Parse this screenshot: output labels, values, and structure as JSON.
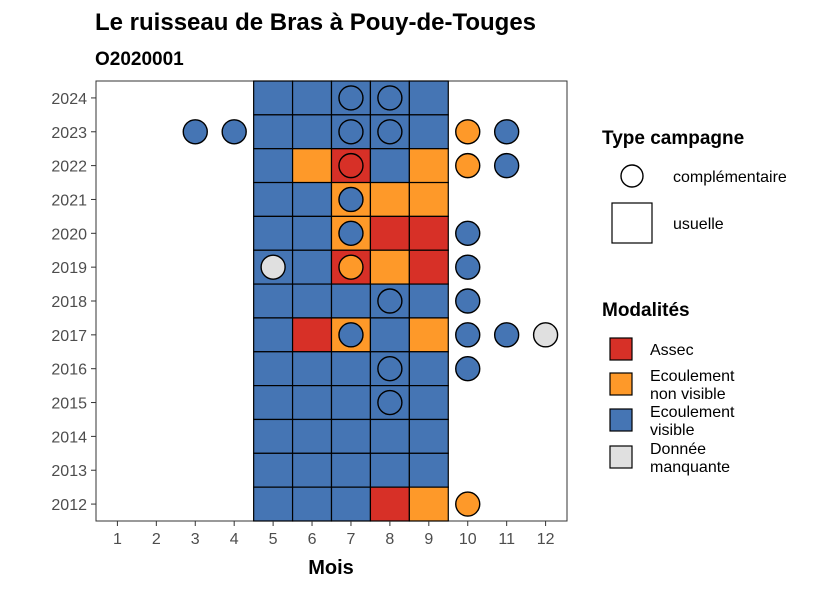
{
  "chart_data": {
    "type": "heatmap",
    "title": "Le ruisseau de Bras à Pouy-de-Touges",
    "subtitle": "O2020001",
    "xlabel": "Mois",
    "ylabel": "",
    "x_ticks": [
      "1",
      "2",
      "3",
      "4",
      "5",
      "6",
      "7",
      "8",
      "9",
      "10",
      "11",
      "12"
    ],
    "y_ticks": [
      "2012",
      "2013",
      "2014",
      "2015",
      "2016",
      "2017",
      "2018",
      "2019",
      "2020",
      "2021",
      "2022",
      "2023",
      "2024"
    ],
    "grid": false,
    "colors": {
      "Assec": "#d73027",
      "Ecoulement non visible": "#fe9929",
      "Ecoulement visible": "#4575b4",
      "Donnée manquante": "#e0e0e0"
    },
    "usuelle": [
      {
        "year": 2024,
        "month": 5,
        "modalite": "Ecoulement visible"
      },
      {
        "year": 2024,
        "month": 6,
        "modalite": "Ecoulement visible"
      },
      {
        "year": 2024,
        "month": 7,
        "modalite": "Ecoulement visible"
      },
      {
        "year": 2024,
        "month": 8,
        "modalite": "Ecoulement visible"
      },
      {
        "year": 2024,
        "month": 9,
        "modalite": "Ecoulement visible"
      },
      {
        "year": 2023,
        "month": 5,
        "modalite": "Ecoulement visible"
      },
      {
        "year": 2023,
        "month": 6,
        "modalite": "Ecoulement visible"
      },
      {
        "year": 2023,
        "month": 7,
        "modalite": "Ecoulement visible"
      },
      {
        "year": 2023,
        "month": 8,
        "modalite": "Ecoulement visible"
      },
      {
        "year": 2023,
        "month": 9,
        "modalite": "Ecoulement visible"
      },
      {
        "year": 2022,
        "month": 5,
        "modalite": "Ecoulement visible"
      },
      {
        "year": 2022,
        "month": 6,
        "modalite": "Ecoulement non visible"
      },
      {
        "year": 2022,
        "month": 7,
        "modalite": "Assec"
      },
      {
        "year": 2022,
        "month": 8,
        "modalite": "Ecoulement visible"
      },
      {
        "year": 2022,
        "month": 9,
        "modalite": "Ecoulement non visible"
      },
      {
        "year": 2021,
        "month": 5,
        "modalite": "Ecoulement visible"
      },
      {
        "year": 2021,
        "month": 6,
        "modalite": "Ecoulement visible"
      },
      {
        "year": 2021,
        "month": 7,
        "modalite": "Ecoulement non visible"
      },
      {
        "year": 2021,
        "month": 8,
        "modalite": "Ecoulement non visible"
      },
      {
        "year": 2021,
        "month": 9,
        "modalite": "Ecoulement non visible"
      },
      {
        "year": 2020,
        "month": 5,
        "modalite": "Ecoulement visible"
      },
      {
        "year": 2020,
        "month": 6,
        "modalite": "Ecoulement visible"
      },
      {
        "year": 2020,
        "month": 7,
        "modalite": "Ecoulement non visible"
      },
      {
        "year": 2020,
        "month": 8,
        "modalite": "Assec"
      },
      {
        "year": 2020,
        "month": 9,
        "modalite": "Assec"
      },
      {
        "year": 2019,
        "month": 5,
        "modalite": "Ecoulement visible"
      },
      {
        "year": 2019,
        "month": 6,
        "modalite": "Ecoulement visible"
      },
      {
        "year": 2019,
        "month": 7,
        "modalite": "Assec"
      },
      {
        "year": 2019,
        "month": 8,
        "modalite": "Ecoulement non visible"
      },
      {
        "year": 2019,
        "month": 9,
        "modalite": "Assec"
      },
      {
        "year": 2018,
        "month": 5,
        "modalite": "Ecoulement visible"
      },
      {
        "year": 2018,
        "month": 6,
        "modalite": "Ecoulement visible"
      },
      {
        "year": 2018,
        "month": 7,
        "modalite": "Ecoulement visible"
      },
      {
        "year": 2018,
        "month": 8,
        "modalite": "Ecoulement visible"
      },
      {
        "year": 2018,
        "month": 9,
        "modalite": "Ecoulement visible"
      },
      {
        "year": 2017,
        "month": 5,
        "modalite": "Ecoulement visible"
      },
      {
        "year": 2017,
        "month": 6,
        "modalite": "Assec"
      },
      {
        "year": 2017,
        "month": 7,
        "modalite": "Ecoulement non visible"
      },
      {
        "year": 2017,
        "month": 8,
        "modalite": "Ecoulement visible"
      },
      {
        "year": 2017,
        "month": 9,
        "modalite": "Ecoulement non visible"
      },
      {
        "year": 2016,
        "month": 5,
        "modalite": "Ecoulement visible"
      },
      {
        "year": 2016,
        "month": 6,
        "modalite": "Ecoulement visible"
      },
      {
        "year": 2016,
        "month": 7,
        "modalite": "Ecoulement visible"
      },
      {
        "year": 2016,
        "month": 8,
        "modalite": "Ecoulement visible"
      },
      {
        "year": 2016,
        "month": 9,
        "modalite": "Ecoulement visible"
      },
      {
        "year": 2015,
        "month": 5,
        "modalite": "Ecoulement visible"
      },
      {
        "year": 2015,
        "month": 6,
        "modalite": "Ecoulement visible"
      },
      {
        "year": 2015,
        "month": 7,
        "modalite": "Ecoulement visible"
      },
      {
        "year": 2015,
        "month": 8,
        "modalite": "Ecoulement visible"
      },
      {
        "year": 2015,
        "month": 9,
        "modalite": "Ecoulement visible"
      },
      {
        "year": 2014,
        "month": 5,
        "modalite": "Ecoulement visible"
      },
      {
        "year": 2014,
        "month": 6,
        "modalite": "Ecoulement visible"
      },
      {
        "year": 2014,
        "month": 7,
        "modalite": "Ecoulement visible"
      },
      {
        "year": 2014,
        "month": 8,
        "modalite": "Ecoulement visible"
      },
      {
        "year": 2014,
        "month": 9,
        "modalite": "Ecoulement visible"
      },
      {
        "year": 2013,
        "month": 5,
        "modalite": "Ecoulement visible"
      },
      {
        "year": 2013,
        "month": 6,
        "modalite": "Ecoulement visible"
      },
      {
        "year": 2013,
        "month": 7,
        "modalite": "Ecoulement visible"
      },
      {
        "year": 2013,
        "month": 8,
        "modalite": "Ecoulement visible"
      },
      {
        "year": 2013,
        "month": 9,
        "modalite": "Ecoulement visible"
      },
      {
        "year": 2012,
        "month": 5,
        "modalite": "Ecoulement visible"
      },
      {
        "year": 2012,
        "month": 6,
        "modalite": "Ecoulement visible"
      },
      {
        "year": 2012,
        "month": 7,
        "modalite": "Ecoulement visible"
      },
      {
        "year": 2012,
        "month": 8,
        "modalite": "Assec"
      },
      {
        "year": 2012,
        "month": 9,
        "modalite": "Ecoulement non visible"
      }
    ],
    "complementaire": [
      {
        "year": 2024,
        "month": 7,
        "modalite": "Ecoulement visible"
      },
      {
        "year": 2024,
        "month": 8,
        "modalite": "Ecoulement visible"
      },
      {
        "year": 2023,
        "month": 3,
        "modalite": "Ecoulement visible"
      },
      {
        "year": 2023,
        "month": 4,
        "modalite": "Ecoulement visible"
      },
      {
        "year": 2023,
        "month": 7,
        "modalite": "Ecoulement visible"
      },
      {
        "year": 2023,
        "month": 8,
        "modalite": "Ecoulement visible"
      },
      {
        "year": 2023,
        "month": 10,
        "modalite": "Ecoulement non visible"
      },
      {
        "year": 2023,
        "month": 11,
        "modalite": "Ecoulement visible"
      },
      {
        "year": 2022,
        "month": 7,
        "modalite": "Assec"
      },
      {
        "year": 2022,
        "month": 10,
        "modalite": "Ecoulement non visible"
      },
      {
        "year": 2022,
        "month": 11,
        "modalite": "Ecoulement visible"
      },
      {
        "year": 2021,
        "month": 7,
        "modalite": "Ecoulement visible"
      },
      {
        "year": 2020,
        "month": 7,
        "modalite": "Ecoulement visible"
      },
      {
        "year": 2020,
        "month": 10,
        "modalite": "Ecoulement visible"
      },
      {
        "year": 2019,
        "month": 5,
        "modalite": "Donnée manquante"
      },
      {
        "year": 2019,
        "month": 7,
        "modalite": "Ecoulement non visible"
      },
      {
        "year": 2019,
        "month": 10,
        "modalite": "Ecoulement visible"
      },
      {
        "year": 2018,
        "month": 8,
        "modalite": "Ecoulement visible"
      },
      {
        "year": 2018,
        "month": 10,
        "modalite": "Ecoulement visible"
      },
      {
        "year": 2017,
        "month": 7,
        "modalite": "Ecoulement visible"
      },
      {
        "year": 2017,
        "month": 10,
        "modalite": "Ecoulement visible"
      },
      {
        "year": 2017,
        "month": 11,
        "modalite": "Ecoulement visible"
      },
      {
        "year": 2017,
        "month": 12,
        "modalite": "Donnée manquante"
      },
      {
        "year": 2016,
        "month": 8,
        "modalite": "Ecoulement visible"
      },
      {
        "year": 2016,
        "month": 10,
        "modalite": "Ecoulement visible"
      },
      {
        "year": 2015,
        "month": 8,
        "modalite": "Ecoulement visible"
      },
      {
        "year": 2012,
        "month": 10,
        "modalite": "Ecoulement non visible"
      }
    ],
    "legend": {
      "position": "right",
      "type_title": "Type campagne",
      "type_items": [
        {
          "label": "complémentaire",
          "shape": "circle"
        },
        {
          "label": "usuelle",
          "shape": "square"
        }
      ],
      "modalite_title": "Modalités",
      "modalite_items": [
        {
          "label": "Assec",
          "lines": [
            "Assec"
          ]
        },
        {
          "label": "Ecoulement non visible",
          "lines": [
            "Ecoulement",
            "non visible"
          ]
        },
        {
          "label": "Ecoulement visible",
          "lines": [
            "Ecoulement",
            "visible"
          ]
        },
        {
          "label": "Donnée manquante",
          "lines": [
            "Donnée",
            "manquante"
          ]
        }
      ]
    }
  }
}
